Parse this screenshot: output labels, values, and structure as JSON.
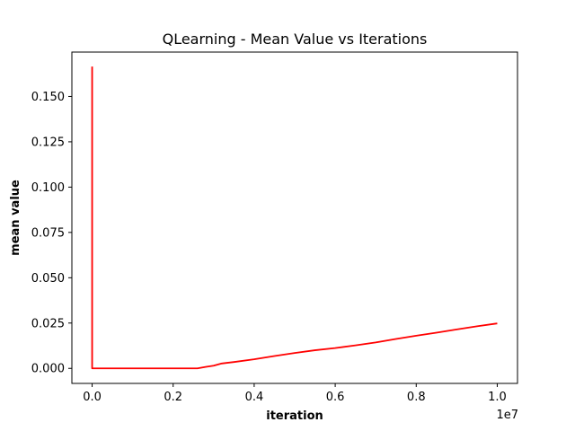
{
  "chart_data": {
    "type": "line",
    "title": "QLearning - Mean Value vs Iterations",
    "xlabel": "iteration",
    "ylabel": "mean value",
    "x_offset_label": "1e7",
    "x_scale": 10000000,
    "xlim": [
      -500000,
      10500000
    ],
    "ylim": [
      -0.0083,
      0.1745
    ],
    "x_ticks": [
      0,
      2000000,
      4000000,
      6000000,
      8000000,
      10000000
    ],
    "x_tick_labels": [
      "0.0",
      "0.2",
      "0.4",
      "0.6",
      "0.8",
      "1.0"
    ],
    "y_ticks": [
      0,
      0.025,
      0.05,
      0.075,
      0.1,
      0.125,
      0.15
    ],
    "y_tick_labels": [
      "0.000",
      "0.025",
      "0.050",
      "0.075",
      "0.100",
      "0.125",
      "0.150"
    ],
    "grid": false,
    "legend": "none",
    "series": [
      {
        "color": "#ff0000",
        "x": [
          0,
          0,
          1000000,
          2000000,
          2600000,
          2800000,
          3000000,
          3200000,
          3500000,
          4000000,
          4500000,
          5000000,
          5500000,
          6000000,
          6500000,
          7000000,
          7500000,
          8000000,
          8500000,
          9000000,
          9500000,
          10000000
        ],
        "y": [
          0.1665,
          0.0,
          0.0,
          0.0,
          0.0,
          0.0008,
          0.0015,
          0.0027,
          0.0035,
          0.005,
          0.0068,
          0.0085,
          0.01,
          0.0112,
          0.0127,
          0.0143,
          0.0162,
          0.018,
          0.0197,
          0.0215,
          0.0232,
          0.0248
        ]
      }
    ]
  }
}
